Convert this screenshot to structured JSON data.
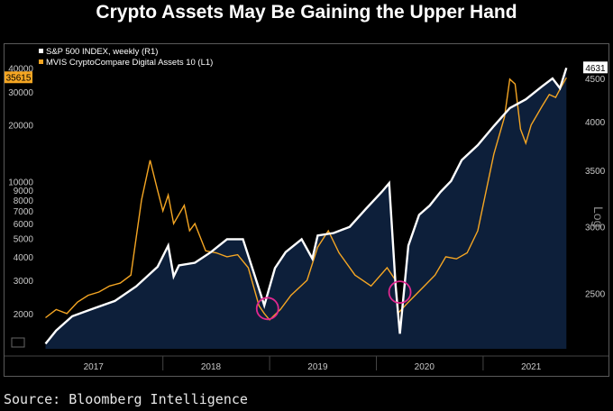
{
  "title": "Crypto Assets May Be Gaining the Upper Hand",
  "source": "Source: Bloomberg Intelligence",
  "colors": {
    "background": "#000000",
    "area": "#0d1f3a",
    "sp500": "#ffffff",
    "crypto": "#f5a623",
    "highlight": "#e0288f",
    "axis_text": "#c8c8c8"
  },
  "chart_data": {
    "type": "line",
    "title": "Crypto Assets May Be Gaining the Upper Hand",
    "x_axis": {
      "labels": [
        "2017",
        "2018",
        "2019",
        "2020",
        "2021"
      ],
      "range": [
        "2016-10",
        "2021-10"
      ]
    },
    "y_left": {
      "scale": "log",
      "range": [
        1300,
        45000
      ],
      "ticks": [
        2000,
        3000,
        4000,
        5000,
        6000,
        7000,
        8000,
        9000,
        10000,
        20000,
        30000,
        40000
      ],
      "tick_labels": [
        "2000",
        "3000",
        "4000",
        "5000",
        "6000",
        "7000",
        "8000",
        "9000",
        "10000",
        "20000",
        "30000",
        "40000"
      ]
    },
    "y_right": {
      "scale": "log",
      "label": "Log",
      "range": [
        2150,
        4750
      ],
      "ticks": [
        2500,
        3000,
        3500,
        4000,
        4500
      ],
      "tick_labels": [
        "2500",
        "3000",
        "3500",
        "4000",
        "4500"
      ]
    },
    "last_values": {
      "crypto": "35615",
      "sp500": "4631"
    },
    "series": [
      {
        "name": "S&P 500 INDEX, weekly (R1)",
        "axis": "right",
        "x": [
          2016.9,
          2017.0,
          2017.15,
          2017.35,
          2017.55,
          2017.75,
          2017.95,
          2018.05,
          2018.1,
          2018.15,
          2018.3,
          2018.45,
          2018.6,
          2018.75,
          2018.85,
          2018.95,
          2019.05,
          2019.15,
          2019.3,
          2019.4,
          2019.45,
          2019.6,
          2019.75,
          2019.9,
          2020.05,
          2020.12,
          2020.18,
          2020.22,
          2020.3,
          2020.4,
          2020.5,
          2020.6,
          2020.7,
          2020.8,
          2020.95,
          2021.1,
          2021.25,
          2021.4,
          2021.55,
          2021.65,
          2021.72,
          2021.78
        ],
        "y": [
          2180,
          2260,
          2350,
          2400,
          2450,
          2550,
          2690,
          2850,
          2620,
          2700,
          2720,
          2800,
          2900,
          2900,
          2650,
          2420,
          2680,
          2800,
          2900,
          2750,
          2930,
          2950,
          3000,
          3150,
          3300,
          3380,
          2560,
          2240,
          2850,
          3100,
          3180,
          3300,
          3400,
          3600,
          3750,
          3950,
          4150,
          4250,
          4400,
          4500,
          4380,
          4631
        ]
      },
      {
        "name": "MVIS CryptoCompare Digital Assets 10 (L1)",
        "axis": "left",
        "x": [
          2016.9,
          2017.0,
          2017.1,
          2017.2,
          2017.3,
          2017.4,
          2017.5,
          2017.6,
          2017.7,
          2017.8,
          2017.88,
          2017.95,
          2018.0,
          2018.05,
          2018.1,
          2018.2,
          2018.25,
          2018.3,
          2018.4,
          2018.5,
          2018.6,
          2018.7,
          2018.8,
          2018.9,
          2018.95,
          2019.0,
          2019.1,
          2019.2,
          2019.35,
          2019.45,
          2019.55,
          2019.65,
          2019.8,
          2019.95,
          2020.1,
          2020.18,
          2020.2,
          2020.3,
          2020.45,
          2020.55,
          2020.65,
          2020.75,
          2020.85,
          2020.95,
          2021.0,
          2021.1,
          2021.2,
          2021.25,
          2021.3,
          2021.35,
          2021.4,
          2021.45,
          2021.55,
          2021.62,
          2021.68,
          2021.72,
          2021.78
        ],
        "y": [
          1900,
          2100,
          2000,
          2300,
          2500,
          2600,
          2800,
          2900,
          3200,
          8000,
          13000,
          9000,
          7000,
          8500,
          6000,
          7500,
          5500,
          6000,
          4300,
          4200,
          4000,
          4100,
          3500,
          2200,
          2000,
          1850,
          2100,
          2500,
          3000,
          4500,
          5500,
          4200,
          3200,
          2800,
          3500,
          3000,
          2000,
          2300,
          2800,
          3200,
          4000,
          3900,
          4200,
          5500,
          7500,
          14000,
          22000,
          35000,
          33000,
          19000,
          16000,
          20000,
          25000,
          29000,
          28000,
          31000,
          35615
        ]
      }
    ],
    "annotations": [
      {
        "type": "circle",
        "x": 2018.98,
        "y_right": 2400,
        "note": "S&P 500 dip late 2018"
      },
      {
        "type": "circle",
        "x": 2020.22,
        "y_right": 2510,
        "note": "S&P 500 dip March 2020"
      }
    ]
  }
}
